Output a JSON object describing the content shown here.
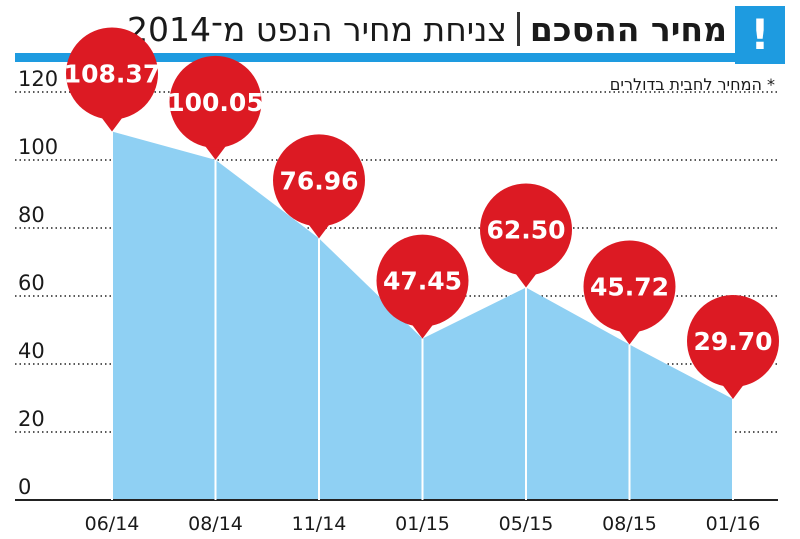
{
  "header": {
    "title_bold": "מחיר ההסכם",
    "title_rest": "צניחת מחיר הנפט מ־2014",
    "alert_symbol": "!"
  },
  "footnote": "* המחיר לחבית בדולרים",
  "colors": {
    "accent": "#1e9be0",
    "area_fill": "#8fd0f3",
    "bubble": "#dc1a23",
    "gridline": "#222222"
  },
  "chart_data": {
    "type": "area",
    "categories": [
      "06/14",
      "08/14",
      "11/14",
      "01/15",
      "05/15",
      "08/15",
      "01/16"
    ],
    "values": [
      108.37,
      100.05,
      76.96,
      47.45,
      62.5,
      45.72,
      29.7
    ],
    "data_labels": [
      "108.37",
      "100.05",
      "76.96",
      "47.45",
      "62.50",
      "45.72",
      "29.70"
    ],
    "yticks": [
      0,
      20,
      40,
      60,
      80,
      100,
      120
    ],
    "ylim": [
      0,
      120
    ],
    "grid": "horizontal dotted",
    "title": "",
    "xlabel": "",
    "ylabel": ""
  }
}
